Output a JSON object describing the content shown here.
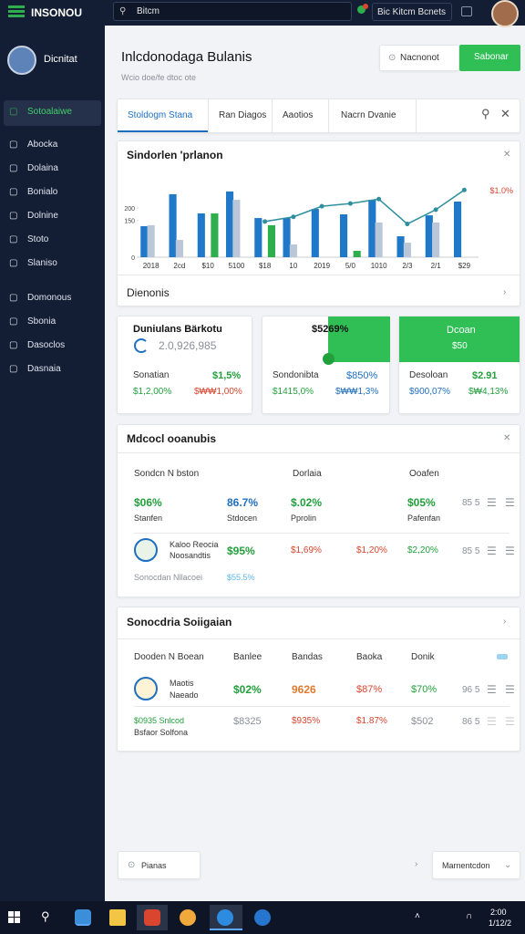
{
  "topbar": {
    "app_name": "INSONOU",
    "search": "Bitcm",
    "button": "Bic Kitcm Bcnets"
  },
  "sidebar": {
    "profile": "Dicnitat",
    "items": [
      "Sotoalaiwe",
      "Abocka",
      "Dolaina",
      "Bonialo",
      "Dolnine",
      "Stoto",
      "Slaniso",
      "Domonous",
      "Sbonia",
      "Dasoclos",
      "Dasnaia"
    ]
  },
  "header": {
    "title": "Inlcdonodaga Bulanis",
    "subtitle": "Wcio doe/fe dtoc ote",
    "buttons": [
      "Nacnonot",
      "Sabonar"
    ]
  },
  "tabs": [
    "Stoldogm Stana",
    "Ran Diagos",
    "Aaotios",
    "Nacrn Dvanie"
  ],
  "chart_card": {
    "title": "Sindorlen 'prlanon",
    "footer": "Dienonis"
  },
  "chart_data": {
    "type": "bar",
    "categories": [
      "2018",
      "2cd",
      "$10",
      "5100",
      "$18",
      "10",
      "2019",
      "5/0",
      "1010",
      "2/3",
      "2/1",
      "$29"
    ],
    "series": [
      {
        "color": "#1f78c8",
        "values": [
          126,
          256,
          178,
          267,
          159,
          159,
          196,
          174,
          233,
          85,
          170,
          226
        ]
      },
      {
        "color": "#b9c7d8",
        "values": [
          130,
          70,
          null,
          233,
          null,
          52,
          null,
          null,
          141,
          59,
          141,
          null
        ]
      },
      {
        "color": "#2fae4e",
        "values": [
          null,
          null,
          178,
          null,
          130,
          null,
          null,
          26,
          null,
          null,
          null,
          null
        ]
      },
      {
        "type": "line",
        "color": "#2f8f9d",
        "values": [
          null,
          null,
          null,
          null,
          145,
          164,
          207,
          218,
          236,
          135,
          193,
          273
        ]
      }
    ],
    "ylim": [
      0,
      300
    ],
    "yticks": [
      0,
      150,
      200
    ],
    "annotation": "$1.0%"
  },
  "stat_cards": [
    {
      "title": "Duniulans Bärkotu",
      "amount": "2.0,926,985",
      "label": "Sonatian",
      "value": "$1,5%",
      "sub1": "$1,2,00%",
      "sub2": "$₩₩1,00%"
    },
    {
      "title": "$5269%",
      "label": "Sondonibta",
      "value": "$850%",
      "sub1": "$1415,0%",
      "sub2": "$₩₩1,3%"
    },
    {
      "title": "Dcoan",
      "amount": "$50",
      "label": "Desoloan",
      "value": "$2.91",
      "sub1": "$900,07%",
      "sub2": "$₩4,13%"
    }
  ],
  "table1": {
    "title": "Mdcocl ooanubis",
    "headers": [
      "Sondcn N bston",
      "Dorlaia",
      "Ooafen"
    ],
    "row1": [
      "$06%",
      "Stanfen",
      "86.7%",
      "Stdocen",
      "$.02%",
      "Pprolin",
      "$05%",
      "Pafenfan",
      "85 5"
    ],
    "row2": [
      "Kaloo Reocia",
      "Noosandtis",
      "$95%",
      "$1,69%",
      "$1,20%",
      "$2,20%",
      "85 5"
    ],
    "note": [
      "Sonocdan Nllacoei",
      "$55.5%"
    ]
  },
  "table2": {
    "title": "Sonocdria Soiigaian",
    "headers": [
      "Dooden N Boean",
      "Banlee",
      "Bandas",
      "Baoka",
      "Donik"
    ],
    "row1": [
      "Maotis",
      "Naeado",
      "$02%",
      "9626",
      "$87%",
      "$70%",
      "96 5"
    ],
    "row2": [
      "$0935 Snlcod",
      "Bsfaor Solfona",
      "$8325",
      "$935%",
      "$1.87%",
      "$502",
      "86 5"
    ]
  },
  "footer": {
    "left": "Pianas",
    "right": "Marnentcdon"
  },
  "taskbar": {
    "time": "2:00",
    "date": "1/12/2"
  }
}
